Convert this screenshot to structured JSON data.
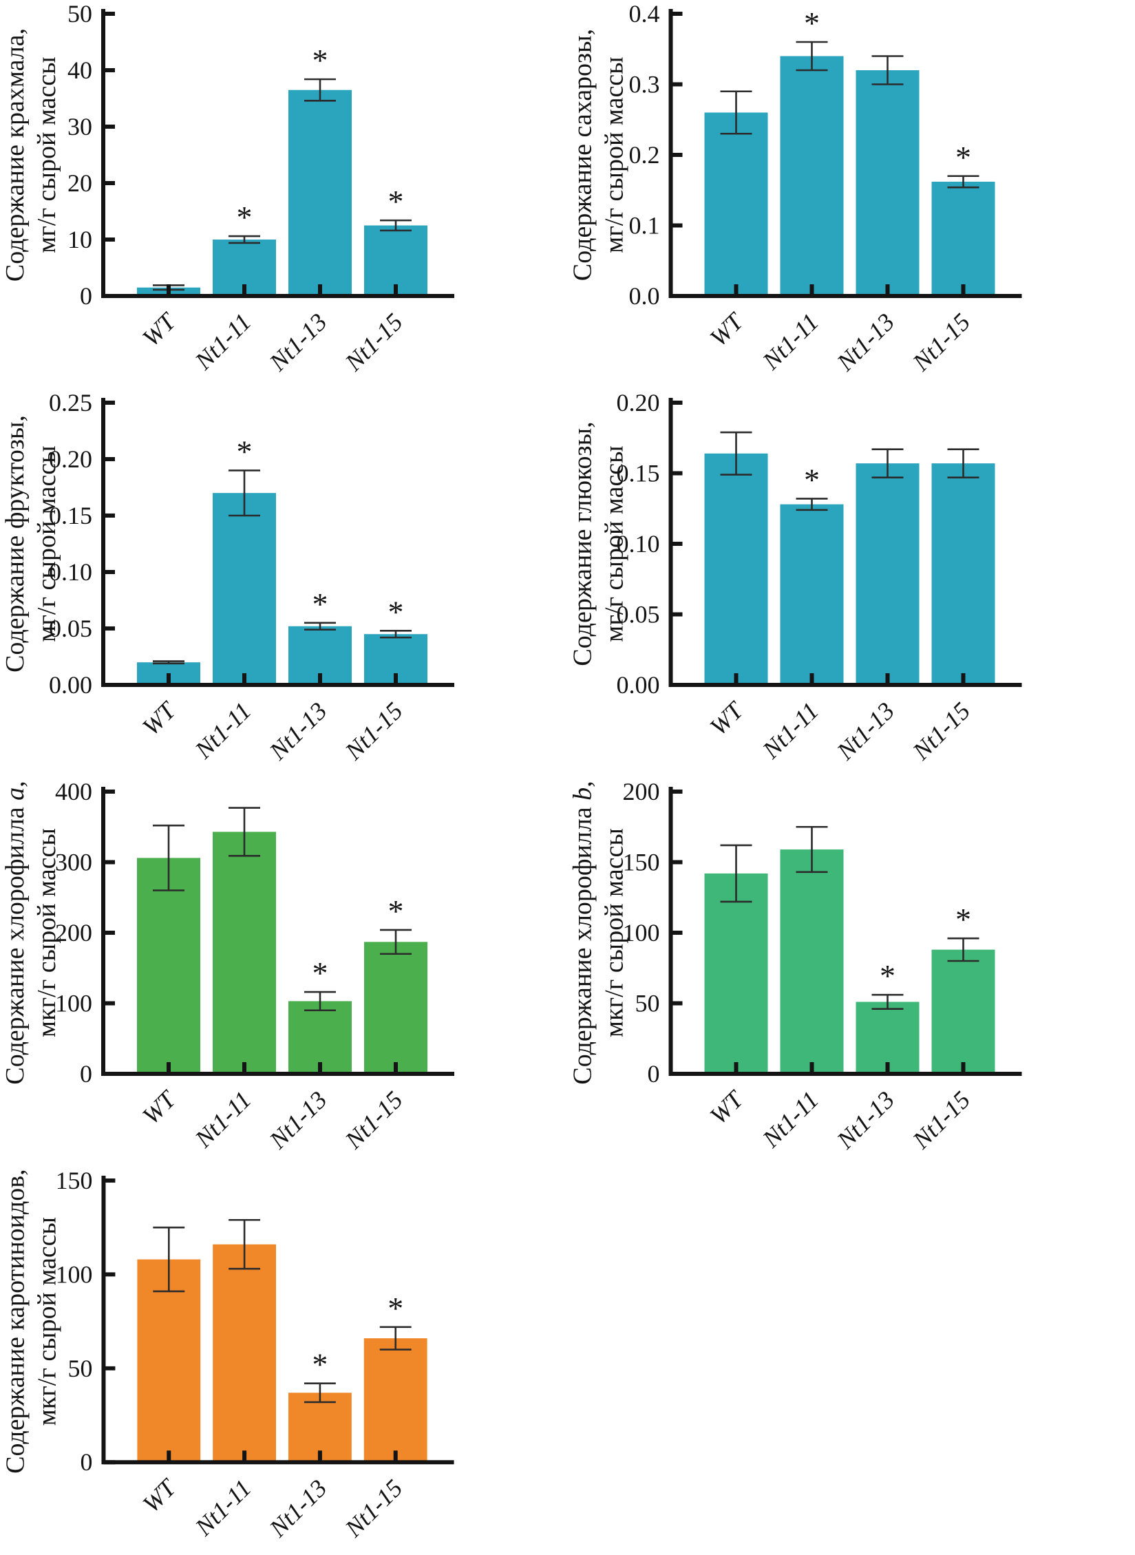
{
  "figure": {
    "background": "#ffffff",
    "axis_color": "#141414",
    "error_color": "#2b2b2b",
    "text_color": "#141414",
    "significance_marker": "*"
  },
  "chart_data": [
    {
      "id": "starch",
      "type": "bar",
      "ylabel_line1": {
        "pre": "Содержание крахмала,",
        "italic": "",
        "post": ""
      },
      "ylabel_line2": "мг/г сырой массы",
      "categories": [
        "WT",
        "Nt1-11",
        "Nt1-13",
        "Nt1-15"
      ],
      "values": [
        1.5,
        10,
        36.5,
        12.5
      ],
      "errors": [
        0.4,
        0.6,
        1.9,
        0.9
      ],
      "significant": [
        false,
        true,
        true,
        true
      ],
      "ylim": [
        0,
        50
      ],
      "yticks": [
        {
          "v": 0,
          "label": "0"
        },
        {
          "v": 10,
          "label": "10"
        },
        {
          "v": 20,
          "label": "20"
        },
        {
          "v": 30,
          "label": "30"
        },
        {
          "v": 40,
          "label": "40"
        },
        {
          "v": 50,
          "label": "50"
        }
      ],
      "bar_color": "#2BA5BE",
      "grid": false,
      "legend": null
    },
    {
      "id": "sucrose",
      "type": "bar",
      "ylabel_line1": {
        "pre": "Содержание сахарозы,",
        "italic": "",
        "post": ""
      },
      "ylabel_line2": "мг/г сырой массы",
      "categories": [
        "WT",
        "Nt1-11",
        "Nt1-13",
        "Nt1-15"
      ],
      "values": [
        0.26,
        0.34,
        0.32,
        0.162
      ],
      "errors": [
        0.03,
        0.02,
        0.02,
        0.008
      ],
      "significant": [
        false,
        true,
        false,
        true
      ],
      "ylim": [
        0,
        0.4
      ],
      "yticks": [
        {
          "v": 0,
          "label": "0.0"
        },
        {
          "v": 0.1,
          "label": "0.1"
        },
        {
          "v": 0.2,
          "label": "0.2"
        },
        {
          "v": 0.3,
          "label": "0.3"
        },
        {
          "v": 0.4,
          "label": "0.4"
        }
      ],
      "bar_color": "#2BA5BE",
      "grid": false,
      "legend": null
    },
    {
      "id": "fructose",
      "type": "bar",
      "ylabel_line1": {
        "pre": "Содержание фруктозы,",
        "italic": "",
        "post": ""
      },
      "ylabel_line2": "мг/г сырой массы",
      "categories": [
        "WT",
        "Nt1-11",
        "Nt1-13",
        "Nt1-15"
      ],
      "values": [
        0.02,
        0.17,
        0.052,
        0.045
      ],
      "errors": [
        0.001,
        0.02,
        0.003,
        0.003
      ],
      "significant": [
        false,
        true,
        true,
        true
      ],
      "ylim": [
        0,
        0.25
      ],
      "yticks": [
        {
          "v": 0,
          "label": "0.00"
        },
        {
          "v": 0.05,
          "label": "0.05"
        },
        {
          "v": 0.1,
          "label": "0.10"
        },
        {
          "v": 0.15,
          "label": "0.15"
        },
        {
          "v": 0.2,
          "label": "0.20"
        },
        {
          "v": 0.25,
          "label": "0.25"
        }
      ],
      "bar_color": "#2BA5BE",
      "grid": false,
      "legend": null
    },
    {
      "id": "glucose",
      "type": "bar",
      "ylabel_line1": {
        "pre": "Содержание глюкозы,",
        "italic": "",
        "post": ""
      },
      "ylabel_line2": "мг/г сырой массы",
      "categories": [
        "WT",
        "Nt1-11",
        "Nt1-13",
        "Nt1-15"
      ],
      "values": [
        0.164,
        0.128,
        0.157,
        0.157
      ],
      "errors": [
        0.015,
        0.004,
        0.01,
        0.01
      ],
      "significant": [
        false,
        true,
        false,
        false
      ],
      "ylim": [
        0,
        0.2
      ],
      "yticks": [
        {
          "v": 0,
          "label": "0.00"
        },
        {
          "v": 0.05,
          "label": "0.05"
        },
        {
          "v": 0.1,
          "label": "0.10"
        },
        {
          "v": 0.15,
          "label": "0.15"
        },
        {
          "v": 0.2,
          "label": "0.20"
        }
      ],
      "bar_color": "#2BA5BE",
      "grid": false,
      "legend": null
    },
    {
      "id": "chlorophyll-a",
      "type": "bar",
      "ylabel_line1": {
        "pre": "Содержание хлорофилла ",
        "italic": "a",
        "post": ","
      },
      "ylabel_line2": "мкг/г сырой массы",
      "categories": [
        "WT",
        "Nt1-11",
        "Nt1-13",
        "Nt1-15"
      ],
      "values": [
        306,
        343,
        103,
        187
      ],
      "errors": [
        46,
        34,
        13,
        17
      ],
      "significant": [
        false,
        false,
        true,
        true
      ],
      "ylim": [
        0,
        400
      ],
      "yticks": [
        {
          "v": 0,
          "label": "0"
        },
        {
          "v": 100,
          "label": "100"
        },
        {
          "v": 200,
          "label": "200"
        },
        {
          "v": 300,
          "label": "300"
        },
        {
          "v": 400,
          "label": "400"
        }
      ],
      "bar_color": "#4BAF4E",
      "grid": false,
      "legend": null
    },
    {
      "id": "chlorophyll-b",
      "type": "bar",
      "ylabel_line1": {
        "pre": "Содержание хлорофилла ",
        "italic": "b",
        "post": ","
      },
      "ylabel_line2": "мкг/г сырой массы",
      "categories": [
        "WT",
        "Nt1-11",
        "Nt1-13",
        "Nt1-15"
      ],
      "values": [
        142,
        159,
        51,
        88
      ],
      "errors": [
        20,
        16,
        5,
        8
      ],
      "significant": [
        false,
        false,
        true,
        true
      ],
      "ylim": [
        0,
        200
      ],
      "yticks": [
        {
          "v": 0,
          "label": "0"
        },
        {
          "v": 50,
          "label": "50"
        },
        {
          "v": 100,
          "label": "100"
        },
        {
          "v": 150,
          "label": "150"
        },
        {
          "v": 200,
          "label": "200"
        }
      ],
      "bar_color": "#3EB778",
      "grid": false,
      "legend": null
    },
    {
      "id": "carotenoids",
      "type": "bar",
      "ylabel_line1": {
        "pre": "Содержание каротиноидов,",
        "italic": "",
        "post": ""
      },
      "ylabel_line2": "мкг/г сырой массы",
      "categories": [
        "WT",
        "Nt1-11",
        "Nt1-13",
        "Nt1-15"
      ],
      "values": [
        108,
        116,
        37,
        66
      ],
      "errors": [
        17,
        13,
        5,
        6
      ],
      "significant": [
        false,
        false,
        true,
        true
      ],
      "ylim": [
        0,
        150
      ],
      "yticks": [
        {
          "v": 0,
          "label": "0"
        },
        {
          "v": 50,
          "label": "50"
        },
        {
          "v": 100,
          "label": "100"
        },
        {
          "v": 150,
          "label": "150"
        }
      ],
      "bar_color": "#F0882A",
      "grid": false,
      "legend": null
    }
  ]
}
